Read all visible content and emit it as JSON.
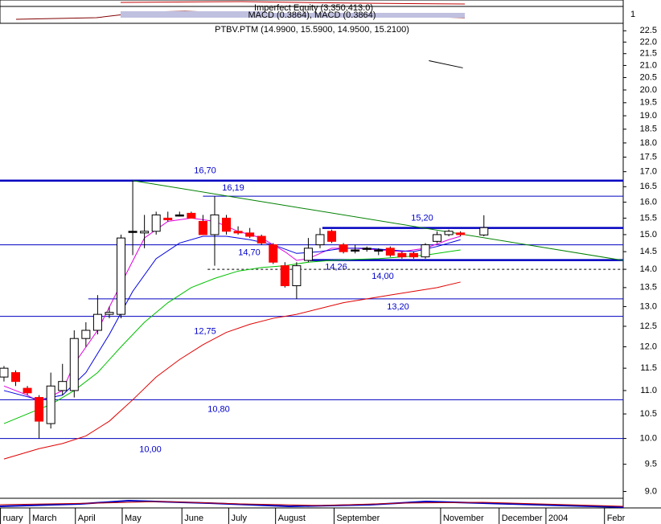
{
  "chart_data": {
    "type": "candlestick",
    "title": "PTBV.PTM (14.9900, 15.5900, 14.9500, 15.2100)",
    "panel_texts": [
      "Imperfect Equity (3,350,413.0)",
      "MACD (0.3864), MACD (0.3864)",
      "1"
    ],
    "log_scale": true,
    "xlim": [
      -0.34,
      52.9
    ],
    "ylim": [
      8.85,
      22.8
    ],
    "xticks": [
      {
        "value": -0.3,
        "label": "ruary"
      },
      {
        "value": 2.2,
        "label": "March"
      },
      {
        "value": 6.1,
        "label": "April"
      },
      {
        "value": 10.1,
        "label": "May"
      },
      {
        "value": 15.2,
        "label": "June"
      },
      {
        "value": 19.2,
        "label": "July"
      },
      {
        "value": 23.2,
        "label": "August"
      },
      {
        "value": 28.2,
        "label": "September"
      },
      {
        "value": 37.3,
        "label": "November"
      },
      {
        "value": 42.3,
        "label": "December"
      },
      {
        "value": 46.3,
        "label": "2004"
      },
      {
        "value": 51.3,
        "label": "Febr"
      }
    ],
    "yticks": [
      {
        "value": 9,
        "label": "9.0"
      },
      9.5,
      {
        "value": 10,
        "label": "10.0"
      },
      10.5,
      {
        "value": 11,
        "label": "11.0"
      },
      11.5,
      {
        "value": 12,
        "label": "12.0"
      },
      12.5,
      {
        "value": 13,
        "label": "13.0"
      },
      13.5,
      {
        "value": 14,
        "label": "14.0"
      },
      14.5,
      {
        "value": 15,
        "label": "15.0"
      },
      15.5,
      {
        "value": 16,
        "label": "16.0"
      },
      16.5,
      {
        "value": 17,
        "label": "17.0"
      },
      17.5,
      {
        "value": 18,
        "label": "18.0"
      },
      18.5,
      {
        "value": 19,
        "label": "19.0"
      },
      19.5,
      {
        "value": 20,
        "label": "20.0"
      },
      20.5,
      {
        "value": 21,
        "label": "21.0"
      },
      21.5,
      {
        "value": 22,
        "label": "22.0"
      },
      22.5
    ],
    "up_color": "#ffffff",
    "down_color": "#ff0000",
    "x": [
      0,
      1,
      2,
      3,
      4,
      5,
      6,
      7,
      8,
      9,
      10,
      11,
      12,
      13,
      14,
      15,
      16,
      17,
      18,
      19,
      20,
      21,
      22,
      23,
      24,
      25,
      26,
      27,
      28,
      29,
      30,
      31,
      32,
      33,
      34,
      35,
      36,
      37,
      38,
      39,
      41
    ],
    "open": [
      11.3,
      11.4,
      11.05,
      10.85,
      10.3,
      11.0,
      11.0,
      12.2,
      12.4,
      12.8,
      12.8,
      15.1,
      15.05,
      15.1,
      15.5,
      15.6,
      15.65,
      15.4,
      15.0,
      15.5,
      15.1,
      15.05,
      14.95,
      14.7,
      14.1,
      13.55,
      14.25,
      14.7,
      15.1,
      14.7,
      14.55,
      14.6,
      14.55,
      14.6,
      14.45,
      14.45,
      14.35,
      14.8,
      15.0,
      15.05,
      14.99
    ],
    "high": [
      11.55,
      11.45,
      11.1,
      10.9,
      11.4,
      11.6,
      12.4,
      12.6,
      13.3,
      13.0,
      15.0,
      16.7,
      15.6,
      15.7,
      15.7,
      15.7,
      15.7,
      15.6,
      16.19,
      15.6,
      15.25,
      15.2,
      15.0,
      14.75,
      14.2,
      14.2,
      14.9,
      15.2,
      15.15,
      14.75,
      14.7,
      14.65,
      14.6,
      14.65,
      14.5,
      14.5,
      14.75,
      15.1,
      15.15,
      15.1,
      15.59
    ],
    "low": [
      11.2,
      11.1,
      10.9,
      10.0,
      10.2,
      10.9,
      10.85,
      12.0,
      12.3,
      12.7,
      12.7,
      14.4,
      14.6,
      15.0,
      15.4,
      15.55,
      15.5,
      15.0,
      14.1,
      15.0,
      15.0,
      14.9,
      14.7,
      14.15,
      13.5,
      13.2,
      14.2,
      14.6,
      14.75,
      14.45,
      14.45,
      14.5,
      14.4,
      14.35,
      14.3,
      14.3,
      14.3,
      14.75,
      14.95,
      14.95,
      14.95
    ],
    "close": [
      11.5,
      11.2,
      10.95,
      10.35,
      11.1,
      11.2,
      12.2,
      12.4,
      12.8,
      12.85,
      14.9,
      15.1,
      15.1,
      15.6,
      15.45,
      15.6,
      15.5,
      15.0,
      15.6,
      15.1,
      15.05,
      14.95,
      14.75,
      14.2,
      13.55,
      14.1,
      14.6,
      15.0,
      14.8,
      14.5,
      14.55,
      14.6,
      14.55,
      14.4,
      14.35,
      14.35,
      14.7,
      15.0,
      15.1,
      15.0,
      15.21
    ],
    "lines": [
      {
        "color": "#e000e0",
        "x": [
          0,
          2,
          3,
          5,
          6,
          8,
          10,
          12,
          14,
          16,
          18,
          20,
          22,
          24,
          25,
          26,
          28,
          30,
          32,
          34,
          36,
          38,
          39
        ],
        "values": [
          11.1,
          10.9,
          10.75,
          11.0,
          11.6,
          12.4,
          13.6,
          14.9,
          15.4,
          15.5,
          15.4,
          15.1,
          14.9,
          14.5,
          14.25,
          14.3,
          14.6,
          14.6,
          14.55,
          14.5,
          14.6,
          14.85,
          14.95
        ]
      },
      {
        "color": "#0000e0",
        "x": [
          0,
          3,
          5,
          7,
          9,
          11,
          13,
          15,
          17,
          19,
          21,
          23,
          25,
          27,
          29,
          31,
          33,
          35,
          37,
          39
        ],
        "values": [
          11.0,
          10.8,
          10.9,
          11.4,
          12.3,
          13.4,
          14.3,
          14.75,
          14.95,
          14.95,
          14.85,
          14.7,
          14.45,
          14.5,
          14.6,
          14.6,
          14.55,
          14.5,
          14.65,
          14.85
        ]
      },
      {
        "color": "#00c000",
        "x": [
          0,
          2,
          4,
          6,
          8,
          10,
          12,
          14,
          16,
          18,
          20,
          22,
          24,
          26,
          28,
          30,
          32,
          34,
          36,
          38,
          39
        ],
        "values": [
          10.3,
          10.5,
          10.7,
          11.0,
          11.4,
          12.0,
          12.6,
          13.1,
          13.5,
          13.75,
          13.95,
          14.05,
          14.1,
          14.2,
          14.25,
          14.28,
          14.3,
          14.35,
          14.4,
          14.5,
          14.55
        ]
      },
      {
        "color": "#e00000",
        "x": [
          0,
          3,
          5,
          7,
          9,
          11,
          13,
          15,
          17,
          19,
          21,
          23,
          25,
          27,
          29,
          31,
          33,
          35,
          37,
          39
        ],
        "values": [
          9.6,
          9.8,
          9.9,
          10.05,
          10.35,
          10.8,
          11.3,
          11.7,
          12.05,
          12.35,
          12.55,
          12.7,
          12.8,
          12.95,
          13.1,
          13.2,
          13.3,
          13.4,
          13.5,
          13.65
        ]
      },
      {
        "color": "#008000",
        "x": [
          11,
          52.9
        ],
        "values": [
          16.7,
          14.25
        ]
      },
      {
        "color": "#000000",
        "x": [
          36.3,
          39.2
        ],
        "values": [
          21.2,
          20.9
        ]
      }
    ],
    "levels": [
      {
        "value": 16.7,
        "label": "16,70",
        "style": "thick"
      },
      {
        "value": 16.19,
        "label": "16,19",
        "from": 17,
        "style": "thin"
      },
      {
        "value": 15.2,
        "label": "15,20",
        "from": 27.2,
        "style": "thick"
      },
      {
        "value": 14.7,
        "label": "14,70",
        "style": "thin"
      },
      {
        "value": 14.26,
        "label": "14,26",
        "from": 26.1,
        "style": "thick"
      },
      {
        "value": 14.0,
        "label": "14,00",
        "from": 17.4,
        "style": "dashed"
      },
      {
        "value": 13.2,
        "label": "13,20",
        "from": 7.2,
        "style": "thin"
      },
      {
        "value": 12.75,
        "label": "12,75",
        "style": "thin"
      },
      {
        "value": 10.8,
        "label": "10,80",
        "style": "thin"
      },
      {
        "value": 10.0,
        "label": "10,00",
        "style": "thin"
      }
    ],
    "level_color": "#0000c0"
  }
}
